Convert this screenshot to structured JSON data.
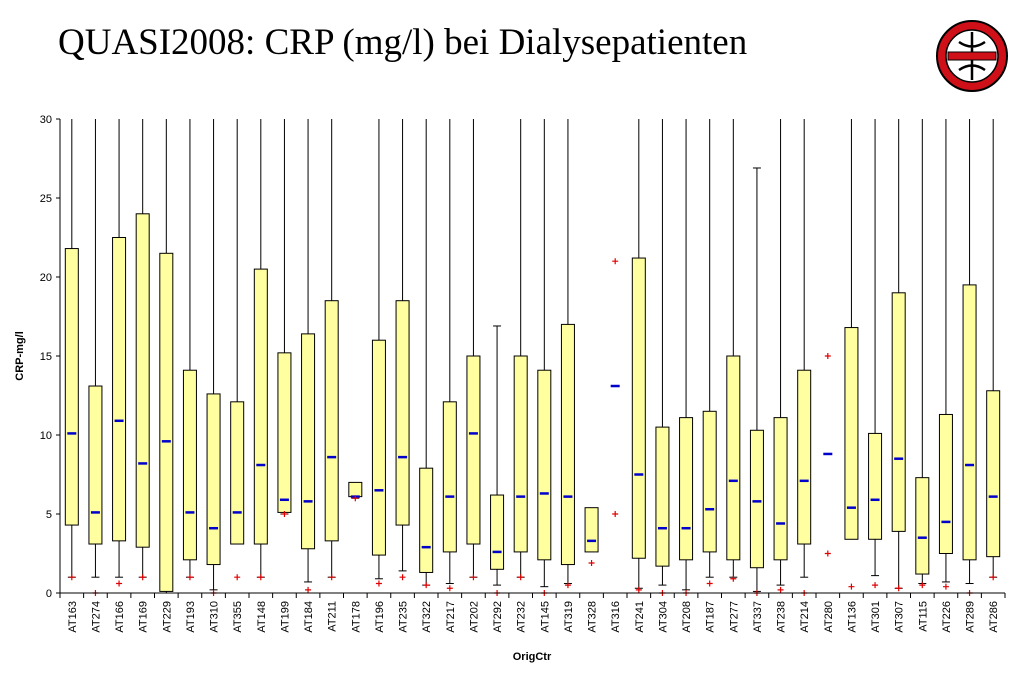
{
  "title": "QUASI2008: CRP (mg/l) bei Dialysepatienten",
  "logo": {
    "icon": "quasi-austria-logo-icon",
    "colors": [
      "#d01018",
      "#ffffff",
      "#000000"
    ]
  },
  "colors": {
    "box_fill": "#ffffa0",
    "box_stroke": "#000000",
    "median": "#0000cc",
    "outlier": "#e00000"
  },
  "chart_data": {
    "type": "boxplot",
    "xlabel": "OrigCtr",
    "ylabel": "CRP-mg/l",
    "ylim": [
      0,
      30
    ],
    "yticks": [
      0,
      5,
      10,
      15,
      20,
      25,
      30
    ],
    "grid": false,
    "legend": "none",
    "categories": [
      "AT163",
      "AT274",
      "AT166",
      "AT169",
      "AT229",
      "AT193",
      "AT310",
      "AT355",
      "AT148",
      "AT199",
      "AT184",
      "AT211",
      "AT178",
      "AT196",
      "AT235",
      "AT322",
      "AT217",
      "AT202",
      "AT292",
      "AT232",
      "AT145",
      "AT319",
      "AT328",
      "AT316",
      "AT241",
      "AT304",
      "AT208",
      "AT187",
      "AT277",
      "AT337",
      "AT238",
      "AT214",
      "AT280",
      "AT136",
      "AT301",
      "AT307",
      "AT115",
      "AT226",
      "AT289",
      "AT286"
    ],
    "series": [
      {
        "category": "AT163",
        "whisker_low": 1.0,
        "q1": 4.3,
        "median": 10.1,
        "q3": 21.8,
        "whisker_high": 30,
        "outliers": [
          1.0
        ]
      },
      {
        "category": "AT274",
        "whisker_low": 1.0,
        "q1": 3.1,
        "median": 5.1,
        "q3": 13.1,
        "whisker_high": 30,
        "outliers": [
          0.0
        ]
      },
      {
        "category": "AT166",
        "whisker_low": 1.0,
        "q1": 3.3,
        "median": 10.9,
        "q3": 22.5,
        "whisker_high": 30,
        "outliers": [
          0.6
        ]
      },
      {
        "category": "AT169",
        "whisker_low": 1.0,
        "q1": 2.9,
        "median": 8.2,
        "q3": 24.0,
        "whisker_high": 30,
        "outliers": [
          1.0
        ]
      },
      {
        "category": "AT229",
        "whisker_low": 0.0,
        "q1": 0.1,
        "median": 9.6,
        "q3": 21.5,
        "whisker_high": 30,
        "outliers": []
      },
      {
        "category": "AT193",
        "whisker_low": 1.0,
        "q1": 2.1,
        "median": 5.1,
        "q3": 14.1,
        "whisker_high": 30,
        "outliers": [
          1.0
        ]
      },
      {
        "category": "AT310",
        "whisker_low": 0.2,
        "q1": 1.8,
        "median": 4.1,
        "q3": 12.6,
        "whisker_high": 30,
        "outliers": [
          0.0
        ]
      },
      {
        "category": "AT355",
        "whisker_low": 3.1,
        "q1": 3.1,
        "median": 5.1,
        "q3": 12.1,
        "whisker_high": 30,
        "outliers": [
          1.0
        ]
      },
      {
        "category": "AT148",
        "whisker_low": 1.0,
        "q1": 3.1,
        "median": 8.1,
        "q3": 20.5,
        "whisker_high": 30,
        "outliers": [
          1.0
        ]
      },
      {
        "category": "AT199",
        "whisker_low": 5.0,
        "q1": 5.1,
        "median": 5.9,
        "q3": 15.2,
        "whisker_high": 30,
        "outliers": [
          5.0
        ]
      },
      {
        "category": "AT184",
        "whisker_low": 0.7,
        "q1": 2.8,
        "median": 5.8,
        "q3": 16.4,
        "whisker_high": 30,
        "outliers": [
          0.2
        ]
      },
      {
        "category": "AT211",
        "whisker_low": 1.0,
        "q1": 3.3,
        "median": 8.6,
        "q3": 18.5,
        "whisker_high": 30,
        "outliers": [
          1.0
        ]
      },
      {
        "category": "AT178",
        "whisker_low": 6.0,
        "q1": 6.1,
        "median": 6.1,
        "q3": 7.0,
        "whisker_high": 7.0,
        "outliers": [
          6.0
        ]
      },
      {
        "category": "AT196",
        "whisker_low": 0.9,
        "q1": 2.4,
        "median": 6.5,
        "q3": 16.0,
        "whisker_high": 30,
        "outliers": [
          0.6
        ]
      },
      {
        "category": "AT235",
        "whisker_low": 1.4,
        "q1": 4.3,
        "median": 8.6,
        "q3": 18.5,
        "whisker_high": 30,
        "outliers": [
          1.0
        ]
      },
      {
        "category": "AT322",
        "whisker_low": 0.5,
        "q1": 1.3,
        "median": 2.9,
        "q3": 7.9,
        "whisker_high": 30,
        "outliers": [
          0.5
        ]
      },
      {
        "category": "AT217",
        "whisker_low": 0.6,
        "q1": 2.6,
        "median": 6.1,
        "q3": 12.1,
        "whisker_high": 30,
        "outliers": [
          0.3
        ]
      },
      {
        "category": "AT202",
        "whisker_low": 1.0,
        "q1": 3.1,
        "median": 10.1,
        "q3": 15.0,
        "whisker_high": 30,
        "outliers": [
          1.0
        ]
      },
      {
        "category": "AT292",
        "whisker_low": 0.5,
        "q1": 1.5,
        "median": 2.6,
        "q3": 6.2,
        "whisker_high": 16.9,
        "outliers": [
          0.0
        ]
      },
      {
        "category": "AT232",
        "whisker_low": 1.0,
        "q1": 2.6,
        "median": 6.1,
        "q3": 15.0,
        "whisker_high": 30,
        "outliers": [
          1.0
        ]
      },
      {
        "category": "AT145",
        "whisker_low": 0.4,
        "q1": 2.1,
        "median": 6.3,
        "q3": 14.1,
        "whisker_high": 30,
        "outliers": [
          0.0
        ]
      },
      {
        "category": "AT319",
        "whisker_low": 0.6,
        "q1": 1.8,
        "median": 6.1,
        "q3": 17.0,
        "whisker_high": 30,
        "outliers": [
          0.5
        ]
      },
      {
        "category": "AT328",
        "whisker_low": 2.6,
        "q1": 2.6,
        "median": 3.3,
        "q3": 5.4,
        "whisker_high": 5.4,
        "outliers": [
          1.9
        ]
      },
      {
        "category": "AT316",
        "whisker_low": null,
        "q1": null,
        "median": 13.1,
        "q3": null,
        "whisker_high": null,
        "outliers": [
          21.0,
          5.0
        ]
      },
      {
        "category": "AT241",
        "whisker_low": 0.3,
        "q1": 2.2,
        "median": 7.5,
        "q3": 21.2,
        "whisker_high": 30,
        "outliers": [
          0.2
        ]
      },
      {
        "category": "AT304",
        "whisker_low": 0.5,
        "q1": 1.7,
        "median": 4.1,
        "q3": 10.5,
        "whisker_high": 30,
        "outliers": [
          0.0
        ]
      },
      {
        "category": "AT208",
        "whisker_low": 0.2,
        "q1": 2.1,
        "median": 4.1,
        "q3": 11.1,
        "whisker_high": 30,
        "outliers": [
          0.0
        ]
      },
      {
        "category": "AT187",
        "whisker_low": 1.0,
        "q1": 2.6,
        "median": 5.3,
        "q3": 11.5,
        "whisker_high": 30,
        "outliers": [
          0.6
        ]
      },
      {
        "category": "AT277",
        "whisker_low": 1.0,
        "q1": 2.1,
        "median": 7.1,
        "q3": 15.0,
        "whisker_high": 30,
        "outliers": [
          0.9
        ]
      },
      {
        "category": "AT337",
        "whisker_low": 0.1,
        "q1": 1.6,
        "median": 5.8,
        "q3": 10.3,
        "whisker_high": 26.9,
        "outliers": [
          0.0
        ]
      },
      {
        "category": "AT238",
        "whisker_low": 0.5,
        "q1": 2.1,
        "median": 4.4,
        "q3": 11.1,
        "whisker_high": 30,
        "outliers": [
          0.2
        ]
      },
      {
        "category": "AT214",
        "whisker_low": 1.0,
        "q1": 3.1,
        "median": 7.1,
        "q3": 14.1,
        "whisker_high": 30,
        "outliers": [
          0.0
        ]
      },
      {
        "category": "AT280",
        "whisker_low": null,
        "q1": null,
        "median": 8.8,
        "q3": null,
        "whisker_high": null,
        "outliers": [
          15.0,
          2.5
        ]
      },
      {
        "category": "AT136",
        "whisker_low": 3.4,
        "q1": 3.4,
        "median": 5.4,
        "q3": 16.8,
        "whisker_high": 30,
        "outliers": [
          0.4
        ]
      },
      {
        "category": "AT301",
        "whisker_low": 1.1,
        "q1": 3.4,
        "median": 5.9,
        "q3": 10.1,
        "whisker_high": 30,
        "outliers": [
          0.5
        ]
      },
      {
        "category": "AT307",
        "whisker_low": 0.3,
        "q1": 3.9,
        "median": 8.5,
        "q3": 19.0,
        "whisker_high": 30,
        "outliers": [
          0.3
        ]
      },
      {
        "category": "AT115",
        "whisker_low": 0.6,
        "q1": 1.2,
        "median": 3.5,
        "q3": 7.3,
        "whisker_high": 30,
        "outliers": [
          0.5
        ]
      },
      {
        "category": "AT226",
        "whisker_low": 0.7,
        "q1": 2.5,
        "median": 4.5,
        "q3": 11.3,
        "whisker_high": 30,
        "outliers": [
          0.4
        ]
      },
      {
        "category": "AT289",
        "whisker_low": 0.6,
        "q1": 2.1,
        "median": 8.1,
        "q3": 19.5,
        "whisker_high": 30,
        "outliers": [
          0.0
        ]
      },
      {
        "category": "AT286",
        "whisker_low": 1.0,
        "q1": 2.3,
        "median": 6.1,
        "q3": 12.8,
        "whisker_high": 30,
        "outliers": [
          1.0
        ]
      }
    ]
  }
}
